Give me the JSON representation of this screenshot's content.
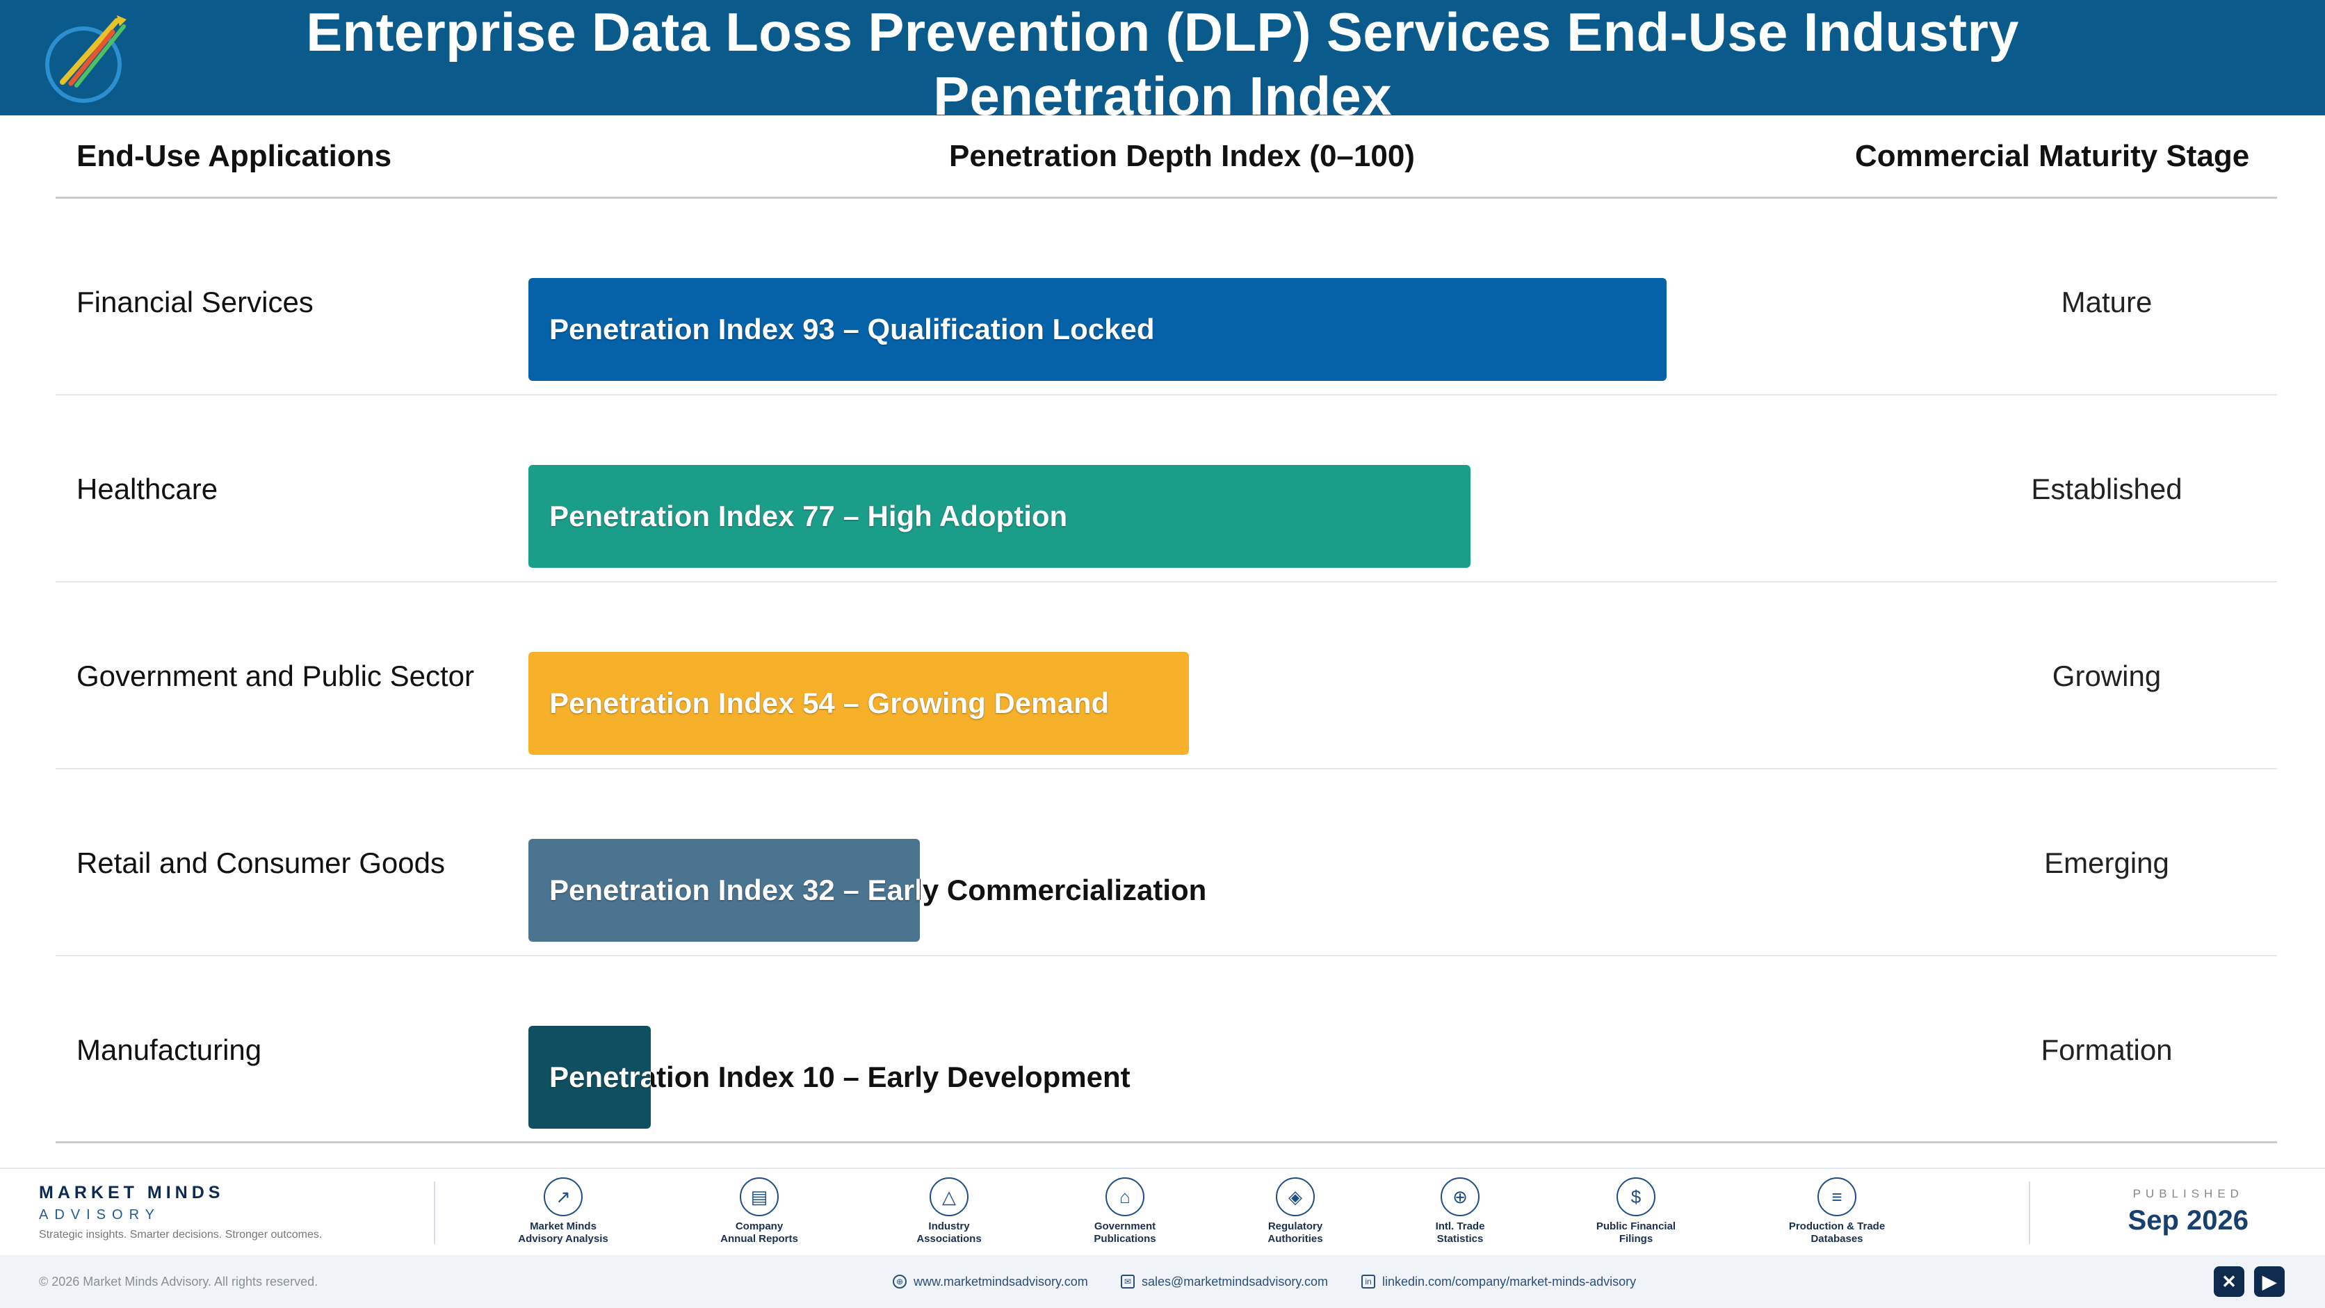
{
  "header": {
    "title": "Enterprise Data Loss Prevention (DLP) Services End-Use Industry Penetration Index"
  },
  "columns": {
    "applications": "End-Use Applications",
    "depth": "Penetration Depth Index (0–100)",
    "maturity": "Commercial Maturity Stage"
  },
  "chart_data": {
    "type": "bar",
    "orientation": "horizontal",
    "xlim": [
      0,
      100
    ],
    "categories": [
      "Financial Services",
      "Healthcare",
      "Government and Public Sector",
      "Retail and Consumer Goods",
      "Manufacturing"
    ],
    "values": [
      93,
      77,
      54,
      32,
      10
    ],
    "bar_labels": [
      "Penetration Index 93 – Qualification Locked",
      "Penetration Index 77 – High Adoption",
      "Penetration Index 54 – Growing Demand",
      "Penetration Index 32 – Early Commercialization",
      "Penetration Index 10 – Early Development"
    ],
    "stages": [
      "Mature",
      "Established",
      "Growing",
      "Emerging",
      "Formation"
    ],
    "colors": [
      "#0562a8",
      "#1a9e8a",
      "#f6b02a",
      "#4a7490",
      "#0f4f5f"
    ]
  },
  "footer": {
    "brand_name": "MARKET MINDS",
    "brand_sub": "ADVISORY",
    "brand_tagline": "Strategic insights. Smarter decisions. Stronger outcomes.",
    "sources": [
      {
        "icon": "chart-line-icon",
        "glyph": "↗",
        "label": "Market Minds\nAdvisory Analysis"
      },
      {
        "icon": "document-icon",
        "glyph": "▤",
        "label": "Company\nAnnual Reports"
      },
      {
        "icon": "network-icon",
        "glyph": "△",
        "label": "Industry\nAssociations"
      },
      {
        "icon": "government-building-icon",
        "glyph": "⌂",
        "label": "Government\nPublications"
      },
      {
        "icon": "shield-icon",
        "glyph": "◈",
        "label": "Regulatory\nAuthorities"
      },
      {
        "icon": "globe-icon",
        "glyph": "⊕",
        "label": "Intl. Trade\nStatistics"
      },
      {
        "icon": "coin-icon",
        "glyph": "$",
        "label": "Public Financial\nFilings"
      },
      {
        "icon": "database-icon",
        "glyph": "≡",
        "label": "Production & Trade\nDatabases"
      }
    ],
    "published_label": "PUBLISHED",
    "published_date": "Sep 2026",
    "copyright": "© 2026 Market Minds Advisory. All rights reserved.",
    "website": "www.marketmindsadvisory.com",
    "email": "sales@marketmindsadvisory.com",
    "linkedin": "linkedin.com/company/market-minds-advisory"
  }
}
